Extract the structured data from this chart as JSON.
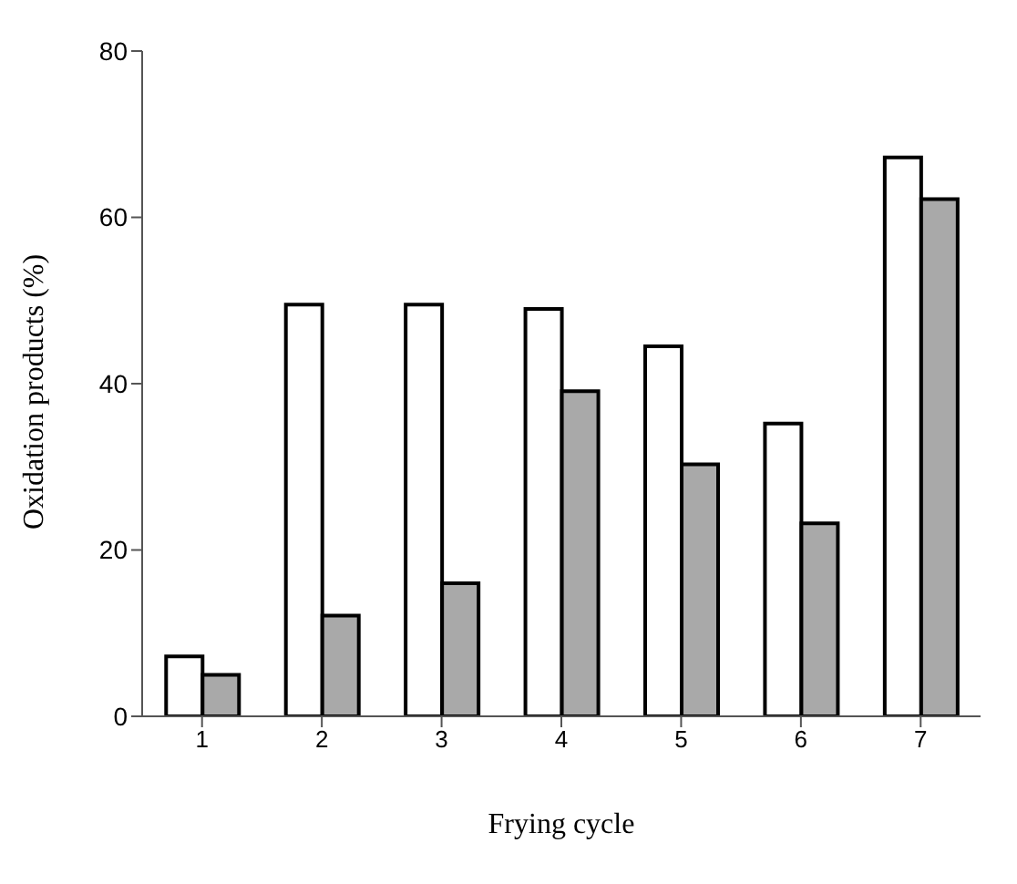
{
  "chart_data": {
    "type": "bar",
    "xlabel": "Frying cycle",
    "ylabel": "Oxidation products (%)",
    "categories": [
      "1",
      "2",
      "3",
      "4",
      "5",
      "6",
      "7"
    ],
    "series": [
      {
        "color": "#ffffff",
        "values": [
          7.2,
          49.5,
          49.5,
          49,
          44.5,
          35.2,
          67.2
        ]
      },
      {
        "color": "#a9a9a9",
        "values": [
          5,
          12.1,
          16,
          39.1,
          30.3,
          23.2,
          62.2
        ]
      }
    ],
    "ylim": [
      0,
      80
    ],
    "yticks": [
      0,
      20,
      40,
      60,
      80
    ],
    "grid": false
  }
}
